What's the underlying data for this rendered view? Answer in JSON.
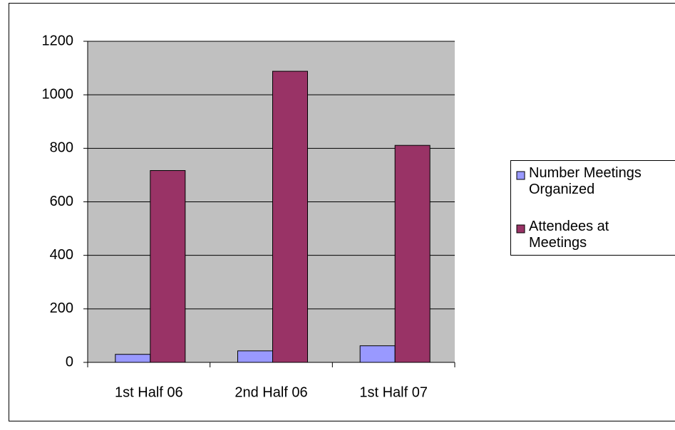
{
  "chart_data": {
    "type": "bar",
    "categories": [
      "1st Half 06",
      "2nd Half 06",
      "1st Half 07"
    ],
    "series": [
      {
        "name": "Number Meetings Organized",
        "color": "#9999ff",
        "values": [
          30,
          43,
          62
        ]
      },
      {
        "name": "Attendees at Meetings",
        "color": "#993366",
        "values": [
          717,
          1088,
          811
        ]
      }
    ],
    "ylim": [
      0,
      1200
    ],
    "yticks": [
      0,
      200,
      400,
      600,
      800,
      1000,
      1200
    ],
    "grid": true,
    "legend": "right",
    "plot_background": "#c0c0c0"
  }
}
